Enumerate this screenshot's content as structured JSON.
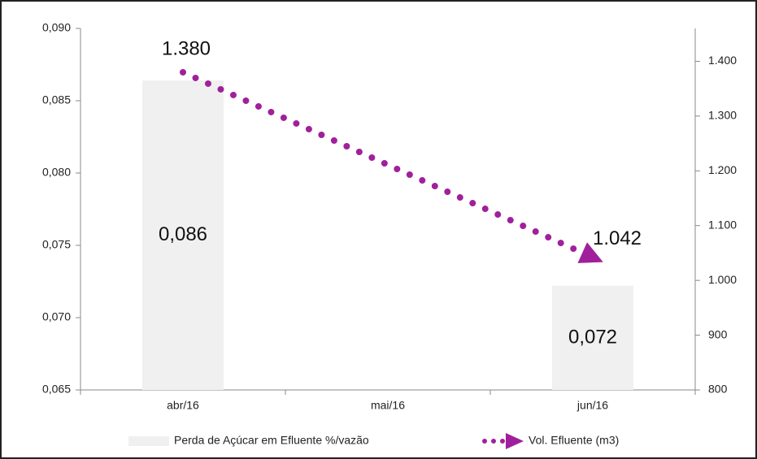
{
  "chart_data": {
    "type": "bar-line",
    "categories": [
      "abr/16",
      "mai/16",
      "jun/16"
    ],
    "series": [
      {
        "name": "Perda de Açúcar em Efluente %/vazão",
        "type": "bar",
        "color": "#f0f0f0",
        "values": [
          0.0864,
          null,
          0.0722
        ],
        "value_labels": [
          "0,086",
          null,
          "0,072"
        ]
      },
      {
        "name": "Vol. Efluente (m3)",
        "type": "line",
        "axis": "y2",
        "color": "#a0209b",
        "values": [
          1380,
          1211,
          1042
        ],
        "value_labels": [
          "1.380",
          null,
          "1.042"
        ]
      }
    ],
    "ylim": [
      0.065,
      0.09
    ],
    "yticks": [
      {
        "value": 0.065,
        "label": "0,065"
      },
      {
        "value": 0.07,
        "label": "0,070"
      },
      {
        "value": 0.075,
        "label": "0,075"
      },
      {
        "value": 0.08,
        "label": "0,080"
      },
      {
        "value": 0.085,
        "label": "0,085"
      },
      {
        "value": 0.09,
        "label": "0,090"
      }
    ],
    "y2lim": [
      800,
      1460
    ],
    "y2ticks": [
      800,
      900,
      {
        "value": 1000,
        "label": "1.000"
      },
      {
        "value": 1100,
        "label": "1.100"
      },
      {
        "value": 1200,
        "label": "1.200"
      },
      {
        "value": 1300,
        "label": "1.300"
      },
      {
        "value": 1400,
        "label": "1.400"
      }
    ],
    "legend": "bottom"
  }
}
